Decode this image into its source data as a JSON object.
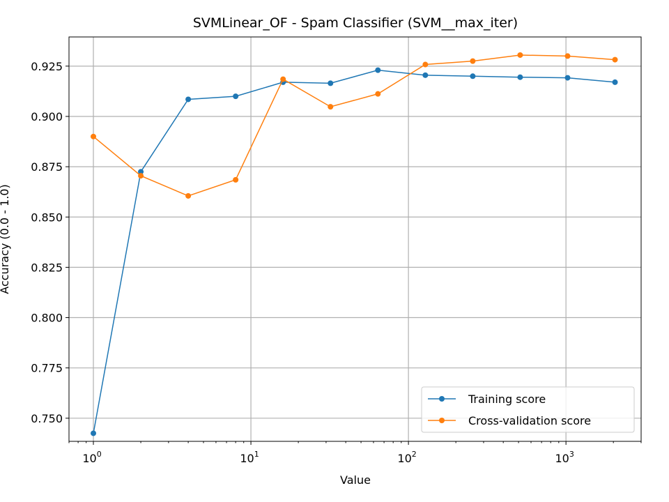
{
  "chart_data": {
    "type": "line",
    "title": "SVMLinear_OF - Spam Classifier (SVM__max_iter)",
    "xlabel": "Value",
    "ylabel": "Accuracy (0.0 - 1.0)",
    "xscale": "log",
    "xlim": [
      0.7,
      3000
    ],
    "ylim": [
      0.7385,
      0.9395
    ],
    "x": [
      1,
      2,
      4,
      8,
      16,
      32,
      64,
      128,
      256,
      512,
      1024,
      2048
    ],
    "xticks": [
      {
        "value": 1,
        "base": "10",
        "exp": "0"
      },
      {
        "value": 10,
        "base": "10",
        "exp": "1"
      },
      {
        "value": 100,
        "base": "10",
        "exp": "2"
      },
      {
        "value": 1000,
        "base": "10",
        "exp": "3"
      }
    ],
    "yticks": [
      {
        "value": 0.75,
        "label": "0.750"
      },
      {
        "value": 0.775,
        "label": "0.775"
      },
      {
        "value": 0.8,
        "label": "0.800"
      },
      {
        "value": 0.825,
        "label": "0.825"
      },
      {
        "value": 0.85,
        "label": "0.850"
      },
      {
        "value": 0.875,
        "label": "0.875"
      },
      {
        "value": 0.9,
        "label": "0.900"
      },
      {
        "value": 0.925,
        "label": "0.925"
      }
    ],
    "grid": true,
    "legend_position": "lower-right",
    "series": [
      {
        "name": "Training score",
        "color": "#1f77b4",
        "values": [
          0.7425,
          0.8725,
          0.9085,
          0.91,
          0.917,
          0.9165,
          0.923,
          0.9205,
          0.92,
          0.9195,
          0.9192,
          0.917
        ]
      },
      {
        "name": "Cross-validation score",
        "color": "#ff7f0e",
        "values": [
          0.89,
          0.8705,
          0.8605,
          0.8685,
          0.9185,
          0.9048,
          0.9112,
          0.9258,
          0.9275,
          0.9305,
          0.93,
          0.9282
        ]
      }
    ]
  }
}
